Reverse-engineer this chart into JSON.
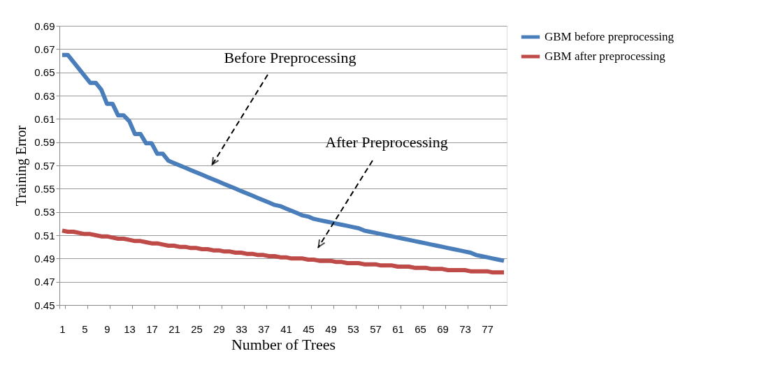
{
  "chart_data": {
    "type": "line",
    "xlabel": "Number of Trees",
    "ylabel": "Training Error",
    "categories": [
      "1",
      null,
      null,
      null,
      "5",
      null,
      null,
      null,
      "9",
      null,
      null,
      null,
      "13",
      null,
      null,
      null,
      "17",
      null,
      null,
      null,
      "21",
      null,
      null,
      null,
      "25",
      null,
      null,
      null,
      "29",
      null,
      null,
      null,
      "33",
      null,
      null,
      null,
      "37",
      null,
      null,
      null,
      "41",
      null,
      null,
      null,
      "45",
      null,
      null,
      null,
      "49",
      null,
      null,
      null,
      "53",
      null,
      null,
      null,
      "57",
      null,
      null,
      null,
      "61",
      null,
      null,
      null,
      "65",
      null,
      null,
      null,
      "69",
      null,
      null,
      null,
      "73",
      null,
      null,
      null,
      "77",
      null,
      null,
      null
    ],
    "series": [
      {
        "name": "GBM before preprocessing",
        "color": "#4a7ebb",
        "values": [
          0.665,
          0.665,
          0.659,
          0.653,
          0.647,
          0.641,
          0.641,
          0.635,
          0.623,
          0.623,
          0.613,
          0.613,
          0.608,
          0.597,
          0.597,
          0.589,
          0.589,
          0.58,
          0.58,
          0.574,
          0.572,
          0.57,
          0.568,
          0.566,
          0.564,
          0.562,
          0.56,
          0.558,
          0.556,
          0.554,
          0.552,
          0.55,
          0.548,
          0.546,
          0.544,
          0.542,
          0.54,
          0.538,
          0.536,
          0.535,
          0.533,
          0.531,
          0.529,
          0.527,
          0.526,
          0.524,
          0.523,
          0.522,
          0.521,
          0.52,
          0.519,
          0.518,
          0.517,
          0.516,
          0.514,
          0.513,
          0.512,
          0.511,
          0.51,
          0.509,
          0.508,
          0.507,
          0.506,
          0.505,
          0.504,
          0.503,
          0.502,
          0.501,
          0.5,
          0.499,
          0.498,
          0.497,
          0.496,
          0.495,
          0.493,
          0.492,
          0.491,
          0.49,
          0.489,
          0.488
        ]
      },
      {
        "name": "GBM after preprocessing",
        "color": "#be4b48",
        "values": [
          0.514,
          0.513,
          0.513,
          0.512,
          0.511,
          0.511,
          0.51,
          0.509,
          0.509,
          0.508,
          0.507,
          0.507,
          0.506,
          0.505,
          0.505,
          0.504,
          0.503,
          0.503,
          0.502,
          0.501,
          0.501,
          0.5,
          0.5,
          0.499,
          0.499,
          0.498,
          0.498,
          0.497,
          0.497,
          0.496,
          0.496,
          0.495,
          0.495,
          0.494,
          0.494,
          0.493,
          0.493,
          0.492,
          0.492,
          0.491,
          0.491,
          0.49,
          0.49,
          0.49,
          0.489,
          0.489,
          0.488,
          0.488,
          0.488,
          0.487,
          0.487,
          0.486,
          0.486,
          0.486,
          0.485,
          0.485,
          0.485,
          0.484,
          0.484,
          0.484,
          0.483,
          0.483,
          0.483,
          0.482,
          0.482,
          0.482,
          0.481,
          0.481,
          0.481,
          0.48,
          0.48,
          0.48,
          0.48,
          0.479,
          0.479,
          0.479,
          0.479,
          0.478,
          0.478,
          0.478
        ]
      }
    ],
    "ylim": [
      0.45,
      0.69
    ],
    "yticks": [
      0.45,
      0.47,
      0.49,
      0.51,
      0.53,
      0.55,
      0.57,
      0.59,
      0.61,
      0.63,
      0.65,
      0.67,
      0.69
    ],
    "grid": "y",
    "legend": "right",
    "line_style": "solid",
    "marker": "none",
    "annotations": [
      "Before Preprocessing",
      "After Preprocessing"
    ]
  }
}
